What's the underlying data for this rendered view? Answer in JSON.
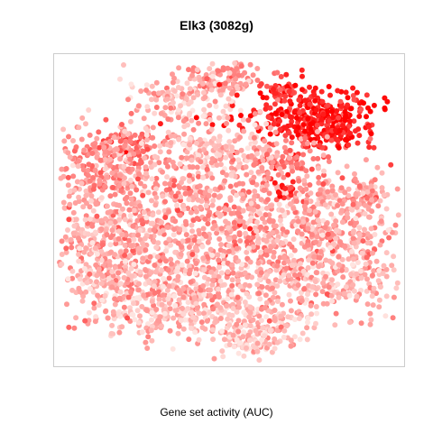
{
  "chart_data": {
    "type": "scatter",
    "title": "Elk3 (3082g)",
    "xlabel": "Gene set activity (AUC)",
    "ylabel": "",
    "point_count_approx": 4000,
    "colors": {
      "low": "#ffe0dc",
      "mid": "#ffaaa4",
      "high": "#ff0000",
      "background": "#ffffff",
      "frame": "#cccccc"
    },
    "color_scale": "Gene set activity (AUC), light pink = low to red = high",
    "grid": false,
    "legend": "none",
    "axes_visible": false
  }
}
